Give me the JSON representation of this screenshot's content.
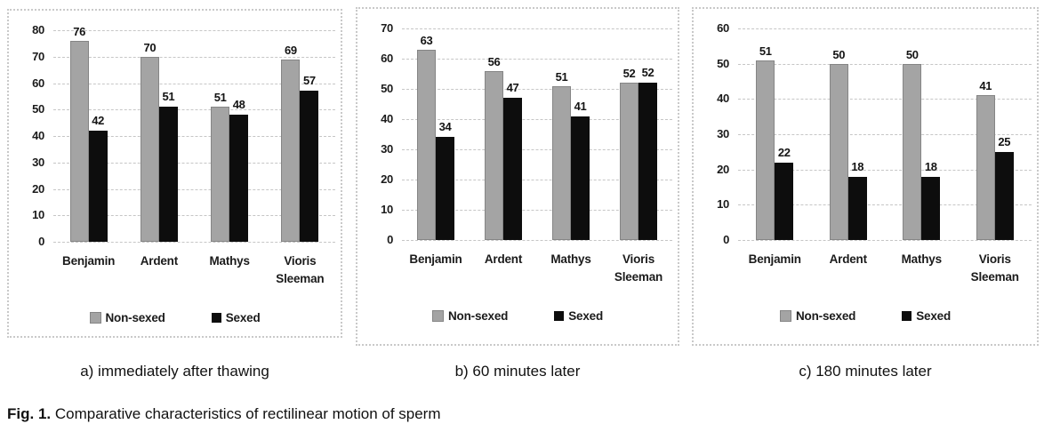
{
  "figure": {
    "caption_label": "Fig. 1.",
    "caption_text": " Comparative characteristics of rectilinear motion of sperm"
  },
  "colors": {
    "non_sexed_fill": "#a4a4a4",
    "non_sexed_border": "#858585",
    "sexed_fill": "#0d0d0d",
    "gridline": "#c6c6c6",
    "panel_border": "#c9c9c9",
    "text": "#1b1b1b"
  },
  "chart_data": [
    {
      "type": "bar",
      "caption": "a) immediately after thawing",
      "categories": [
        "Benjamin",
        "Ardent",
        "Mathys",
        "Vioris Sleeman"
      ],
      "series": [
        {
          "name": "Non-sexed",
          "values": [
            76,
            70,
            51,
            69
          ]
        },
        {
          "name": "Sexed",
          "values": [
            42,
            51,
            48,
            57
          ]
        }
      ],
      "ylim": [
        0,
        80
      ],
      "ytick_step": 10,
      "grid": true,
      "legend": [
        "Non-sexed",
        "Sexed"
      ],
      "legend_position": "bottom"
    },
    {
      "type": "bar",
      "caption": "b) 60 minutes later",
      "categories": [
        "Benjamin",
        "Ardent",
        "Mathys",
        "Vioris Sleeman"
      ],
      "series": [
        {
          "name": "Non-sexed",
          "values": [
            63,
            56,
            51,
            52
          ]
        },
        {
          "name": "Sexed",
          "values": [
            34,
            47,
            41,
            52
          ]
        }
      ],
      "ylim": [
        0,
        70
      ],
      "ytick_step": 10,
      "grid": true,
      "legend": [
        "Non-sexed",
        "Sexed"
      ],
      "legend_position": "bottom"
    },
    {
      "type": "bar",
      "caption": "c) 180 minutes later",
      "categories": [
        "Benjamin",
        "Ardent",
        "Mathys",
        "Vioris Sleeman"
      ],
      "series": [
        {
          "name": "Non-sexed",
          "values": [
            51,
            50,
            50,
            41
          ]
        },
        {
          "name": "Sexed",
          "values": [
            22,
            18,
            18,
            25
          ]
        }
      ],
      "ylim": [
        0,
        60
      ],
      "ytick_step": 10,
      "grid": true,
      "legend": [
        "Non-sexed",
        "Sexed"
      ],
      "legend_position": "bottom"
    }
  ]
}
